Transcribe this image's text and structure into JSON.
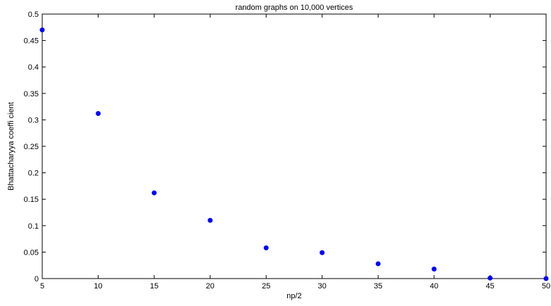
{
  "chart_data": {
    "type": "scatter",
    "title": "random graphs on 10,000 vertices",
    "xlabel": "np/2",
    "ylabel": "Bhattacharyya coeffi cient",
    "xlim": [
      5,
      50
    ],
    "ylim": [
      0,
      0.5
    ],
    "xticks": [
      5,
      10,
      15,
      20,
      25,
      30,
      35,
      40,
      45,
      50
    ],
    "yticks": [
      0,
      0.05,
      0.1,
      0.15,
      0.2,
      0.25,
      0.3,
      0.35,
      0.4,
      0.45,
      0.5
    ],
    "xtick_labels": [
      "5",
      "10",
      "15",
      "20",
      "25",
      "30",
      "35",
      "40",
      "45",
      "50"
    ],
    "ytick_labels": [
      "0",
      "0.05",
      "0.1",
      "0.15",
      "0.2",
      "0.25",
      "0.3",
      "0.35",
      "0.4",
      "0.45",
      "0.5"
    ],
    "grid": false,
    "marker_color": "#0000ff",
    "series": [
      {
        "x": [
          5,
          10,
          15,
          20,
          25,
          30,
          35,
          40,
          45,
          50
        ],
        "y": [
          0.47,
          0.312,
          0.162,
          0.11,
          0.058,
          0.049,
          0.028,
          0.018,
          0.001,
          0.0
        ]
      }
    ]
  }
}
